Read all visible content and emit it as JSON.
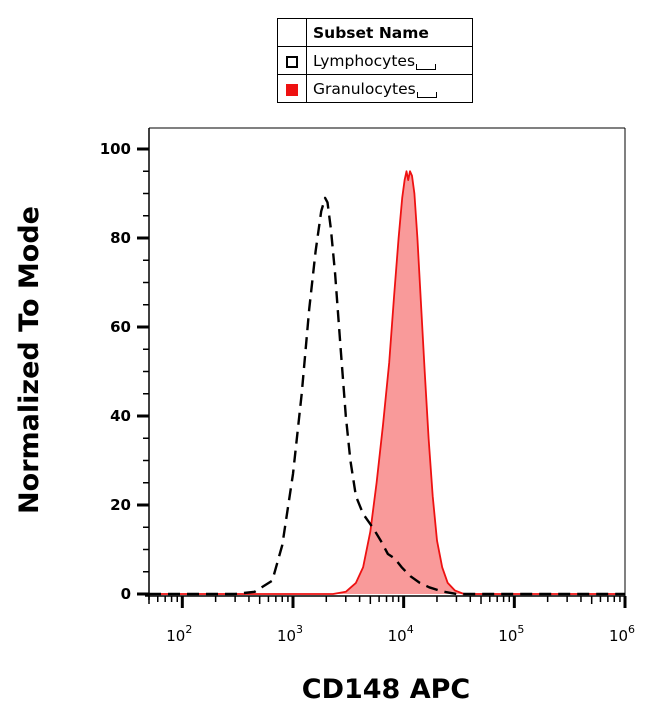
{
  "legend": {
    "header": "Subset Name",
    "items": [
      {
        "name": "Lymphocytes",
        "style": "outline",
        "color": "#000000"
      },
      {
        "name": "Granulocytes",
        "style": "filled",
        "color": "#ee1111"
      }
    ]
  },
  "chart_data": {
    "type": "area",
    "xlabel": "CD148 APC",
    "ylabel": "Normalized To Mode",
    "x_scale": "log",
    "xlim": [
      50,
      1000000
    ],
    "ylim": [
      0,
      105
    ],
    "y_ticks": [
      0,
      20,
      40,
      60,
      80,
      100
    ],
    "x_ticks": [
      {
        "base": "10",
        "exp": "2",
        "value": 100
      },
      {
        "base": "10",
        "exp": "3",
        "value": 1000
      },
      {
        "base": "10",
        "exp": "4",
        "value": 10000
      },
      {
        "base": "10",
        "exp": "5",
        "value": 100000
      },
      {
        "base": "10",
        "exp": "6",
        "value": 1000000
      }
    ],
    "series": [
      {
        "name": "Lymphocytes",
        "line_style": "dashed",
        "color": "#000000",
        "fill": "none",
        "points": [
          [
            50,
            0
          ],
          [
            300,
            0
          ],
          [
            450,
            0.5
          ],
          [
            650,
            3
          ],
          [
            800,
            11
          ],
          [
            1000,
            27
          ],
          [
            1200,
            45
          ],
          [
            1400,
            64
          ],
          [
            1600,
            77
          ],
          [
            1800,
            86
          ],
          [
            1950,
            89
          ],
          [
            2050,
            88
          ],
          [
            2200,
            82
          ],
          [
            2400,
            72
          ],
          [
            2700,
            55
          ],
          [
            3000,
            40
          ],
          [
            3300,
            30
          ],
          [
            3700,
            22
          ],
          [
            4300,
            18
          ],
          [
            4900,
            16
          ],
          [
            5400,
            14.5
          ],
          [
            6200,
            12
          ],
          [
            7200,
            9
          ],
          [
            8300,
            8
          ],
          [
            9600,
            6
          ],
          [
            11500,
            4
          ],
          [
            14000,
            2.5
          ],
          [
            17000,
            1.5
          ],
          [
            22000,
            0.6
          ],
          [
            30000,
            0
          ],
          [
            1000000,
            0
          ]
        ]
      },
      {
        "name": "Granulocytes",
        "line_style": "solid",
        "color": "#ee1111",
        "fill": "#f99a9a",
        "points": [
          [
            50,
            0
          ],
          [
            2300,
            0
          ],
          [
            3000,
            0.5
          ],
          [
            3700,
            2.5
          ],
          [
            4300,
            6
          ],
          [
            5000,
            14
          ],
          [
            5700,
            25
          ],
          [
            6500,
            38
          ],
          [
            7400,
            52
          ],
          [
            8200,
            67
          ],
          [
            9000,
            80
          ],
          [
            9700,
            89
          ],
          [
            10200,
            93
          ],
          [
            10600,
            95
          ],
          [
            11000,
            93
          ],
          [
            11400,
            95
          ],
          [
            11900,
            94
          ],
          [
            12500,
            90
          ],
          [
            13300,
            80
          ],
          [
            14300,
            66
          ],
          [
            15500,
            50
          ],
          [
            16800,
            35
          ],
          [
            18300,
            22
          ],
          [
            20000,
            12
          ],
          [
            22300,
            6
          ],
          [
            25000,
            2.5
          ],
          [
            29000,
            0.8
          ],
          [
            35000,
            0
          ],
          [
            1000000,
            0
          ]
        ]
      }
    ]
  }
}
